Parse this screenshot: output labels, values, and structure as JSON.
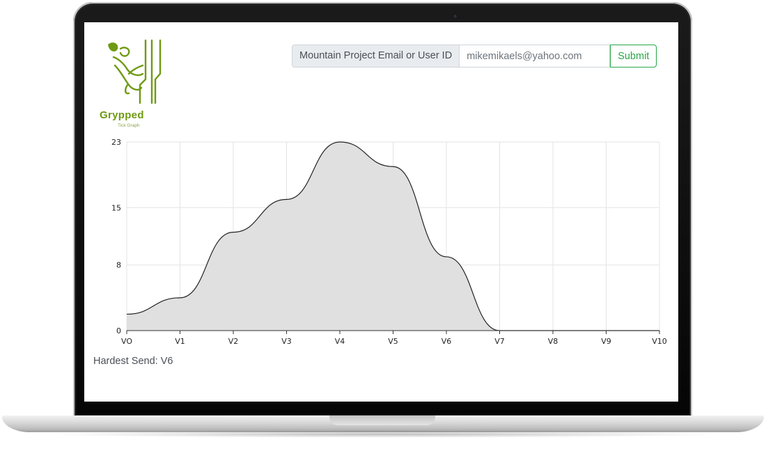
{
  "app": {
    "brand_name": "Grypped",
    "brand_tagline": "Tick Graph",
    "brand_color": "#6e9a12"
  },
  "form": {
    "label": "Mountain Project Email or User ID",
    "input_value": "mikemikaels@yahoo.com",
    "submit_label": "Submit",
    "submit_color": "#28a745"
  },
  "chart_data": {
    "type": "area",
    "categories": [
      "VO",
      "V1",
      "V2",
      "V3",
      "V4",
      "V5",
      "V6",
      "V7",
      "V8",
      "V9",
      "V10"
    ],
    "values": [
      2,
      4,
      12,
      16,
      23,
      20,
      9,
      0,
      0,
      0,
      0
    ],
    "yticks": [
      0,
      8,
      15,
      23
    ],
    "ylim": [
      0,
      23
    ],
    "grid": true,
    "fill_color": "#e0e0e0",
    "line_color": "#222222"
  },
  "summary": {
    "hardest_send": "Hardest Send: V6"
  }
}
